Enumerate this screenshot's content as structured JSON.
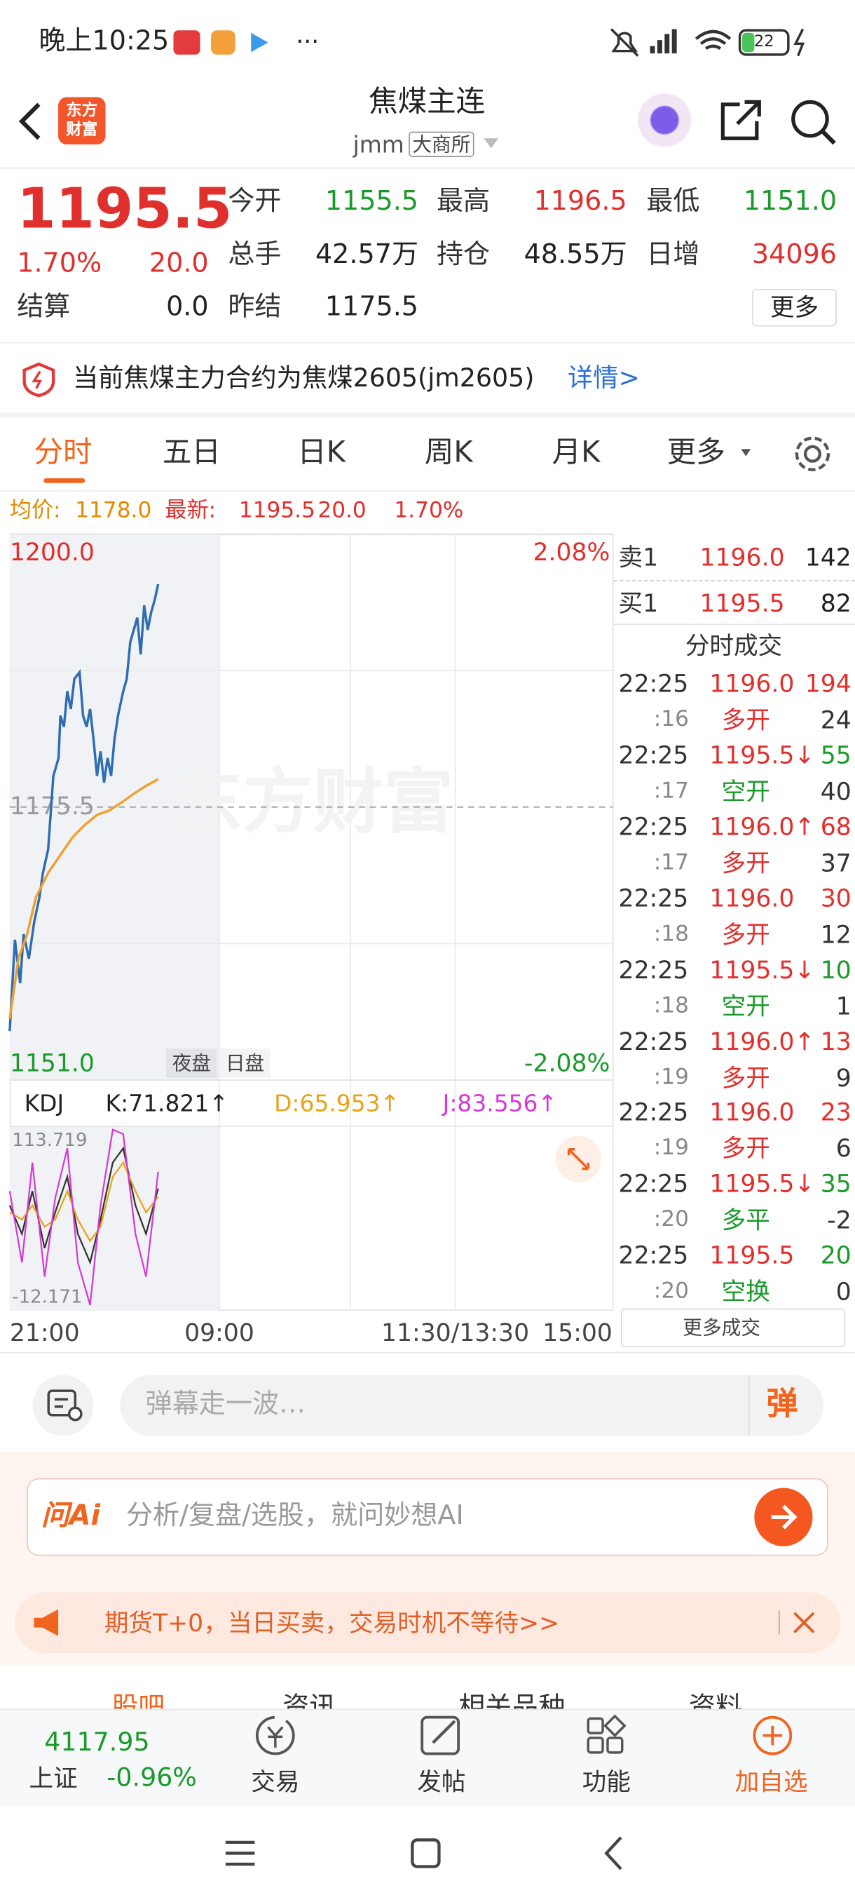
{
  "status_bar": {
    "time": "晚上10:25",
    "battery": "22"
  },
  "header": {
    "logo": "东方财富",
    "title": "焦煤主连",
    "code": "jmm",
    "exchange": "大商所"
  },
  "quote": {
    "price": "1195.5",
    "change_pct": "1.70%",
    "change": "20.0",
    "fields": [
      {
        "label": "今开",
        "value": "1155.5"
      },
      {
        "label": "最高",
        "value": "1196.5"
      },
      {
        "label": "最低",
        "value": "1151.0"
      },
      {
        "label": "总手",
        "value": "42.57万"
      },
      {
        "label": "持仓",
        "value": "48.55万"
      },
      {
        "label": "日增",
        "value": "34096"
      },
      {
        "label": "结算",
        "value": "0.0"
      },
      {
        "label": "昨结",
        "value": "1175.5"
      }
    ],
    "more": "更多"
  },
  "notice": {
    "text": "当前焦煤主力合约为焦煤2605(jm2605)",
    "link": "详情>"
  },
  "tabs": [
    "分时",
    "五日",
    "日K",
    "周K",
    "月K",
    "更多"
  ],
  "info": {
    "avg_label": "均价:",
    "avg": "1178.0",
    "last_label": "最新:",
    "last": "1195.5",
    "change": "20.0",
    "change_pct": "1.70%"
  },
  "chart_data": [
    {
      "type": "line",
      "watermark": "东方财富",
      "session_labels": [
        "夜盘",
        "日盘"
      ],
      "xlim": [
        0,
        345
      ],
      "xticks": [
        {
          "value": 0,
          "label": "21:00"
        },
        {
          "value": 120,
          "label": "09:00"
        },
        {
          "value": 255,
          "label": "11:30/13:30"
        },
        {
          "value": 345,
          "label": "15:00"
        }
      ],
      "ylim": [
        1151.0,
        1200.0
      ],
      "yticks": [
        {
          "value": 1151,
          "label": "1151.0"
        },
        1175.5,
        {
          "value": 1200,
          "label": "1200.0"
        }
      ],
      "y2lim": [
        -2.08,
        2.08
      ],
      "y2ticks": [
        {
          "value": -2.08,
          "label": "-2.08%"
        },
        {
          "value": 2.08,
          "label": "2.08%"
        }
      ],
      "series": [
        {
          "color": "#2f6db3",
          "x": [
            0,
            3,
            6,
            8,
            11,
            14,
            17,
            19,
            22,
            25,
            28,
            29,
            31,
            33,
            35,
            37,
            40,
            42,
            44,
            46,
            48,
            50,
            52,
            54,
            56,
            58,
            60,
            62,
            65,
            67,
            69,
            71,
            73,
            75,
            77,
            79,
            81,
            83,
            85
          ],
          "values": [
            1155.4,
            1163.6,
            1159.7,
            1164.1,
            1161.9,
            1165.2,
            1167.4,
            1169.6,
            1171.7,
            1178.3,
            1179.9,
            1183.7,
            1182.7,
            1185.9,
            1184.3,
            1187.0,
            1187.6,
            1183.7,
            1182.7,
            1184.3,
            1181.6,
            1178.3,
            1180.5,
            1177.7,
            1179.9,
            1178.3,
            1181.6,
            1183.7,
            1185.9,
            1187.0,
            1190.3,
            1191.4,
            1192.5,
            1189.2,
            1193.6,
            1191.4,
            1193.0,
            1194.1,
            1195.5
          ]
        },
        {
          "color": "#f0a030",
          "x": [
            0,
            5,
            10,
            15,
            22,
            29,
            36,
            43,
            50,
            57,
            64,
            71,
            78,
            85
          ],
          "values": [
            1156.5,
            1161.9,
            1164.1,
            1167.4,
            1169.6,
            1171.2,
            1172.8,
            1173.9,
            1174.8,
            1175.2,
            1175.9,
            1176.7,
            1177.4,
            1178.0
          ]
        }
      ]
    },
    {
      "type": "line",
      "indicator": "KDJ",
      "xlim": [
        0,
        345
      ],
      "x": [
        0,
        7,
        13,
        20,
        26,
        33,
        39,
        46,
        52,
        59,
        65,
        72,
        78,
        85
      ],
      "ylim": [
        -12.171,
        113.719
      ],
      "yticks": [
        -12.171,
        113.719
      ],
      "series": [
        {
          "name": "K:71.821↑",
          "color": "#333333",
          "values": [
            60,
            40,
            70,
            30,
            55,
            80,
            40,
            20,
            50,
            90,
            100,
            60,
            40,
            71.821
          ]
        },
        {
          "name": "D:65.953↑",
          "color": "#e8a317",
          "values": [
            55,
            50,
            60,
            45,
            50,
            70,
            50,
            35,
            45,
            80,
            90,
            70,
            55,
            65.953
          ]
        },
        {
          "name": "J:83.556↑",
          "color": "#d63ad6",
          "values": [
            70,
            20,
            90,
            10,
            65,
            100,
            20,
            -10,
            60,
            113,
            110,
            40,
            10,
            83.556
          ]
        }
      ]
    }
  ],
  "order_book": {
    "asks": [
      {
        "label": "卖1",
        "price": "1196.0",
        "volume": "142"
      }
    ],
    "bids": [
      {
        "label": "买1",
        "price": "1195.5",
        "volume": "82"
      }
    ],
    "trades_title": "分时成交",
    "trades": [
      {
        "time": "22:25",
        "price": "1196.0",
        "volume": "194",
        "sec": ":16",
        "kind": "多开",
        "change": "24"
      },
      {
        "time": "22:25",
        "price": "1195.5↓",
        "volume": "55",
        "sec": ":17",
        "kind": "空开",
        "change": "40"
      },
      {
        "time": "22:25",
        "price": "1196.0↑",
        "volume": "68",
        "sec": ":17",
        "kind": "多开",
        "change": "37"
      },
      {
        "time": "22:25",
        "price": "1196.0",
        "volume": "30",
        "sec": ":18",
        "kind": "多开",
        "change": "12"
      },
      {
        "time": "22:25",
        "price": "1195.5↓",
        "volume": "10",
        "sec": ":18",
        "kind": "空开",
        "change": "1"
      },
      {
        "time": "22:25",
        "price": "1196.0↑",
        "volume": "13",
        "sec": ":19",
        "kind": "多开",
        "change": "9"
      },
      {
        "time": "22:25",
        "price": "1196.0",
        "volume": "23",
        "sec": ":19",
        "kind": "多开",
        "change": "6"
      },
      {
        "time": "22:25",
        "price": "1195.5↓",
        "volume": "35",
        "sec": ":20",
        "kind": "多平",
        "change": "-2"
      },
      {
        "time": "22:25",
        "price": "1195.5",
        "volume": "20",
        "sec": ":20",
        "kind": "空换",
        "change": "0"
      }
    ],
    "more": "更多成交"
  },
  "comment": {
    "placeholder": "弹幕走一波…",
    "button": "弹"
  },
  "ai": {
    "logo": "问Ai",
    "placeholder": "分析/复盘/选股，就问妙想AI"
  },
  "banner": "期货T+0，当日买卖，交易时机不等待>>",
  "section_tabs": [
    "股吧",
    "资讯",
    "相关品种",
    "资料"
  ],
  "bottom_nav": {
    "index": {
      "value": "4117.95",
      "name": "上证",
      "change": "-0.96%"
    },
    "items": [
      "交易",
      "发帖",
      "功能",
      "加自选"
    ]
  }
}
